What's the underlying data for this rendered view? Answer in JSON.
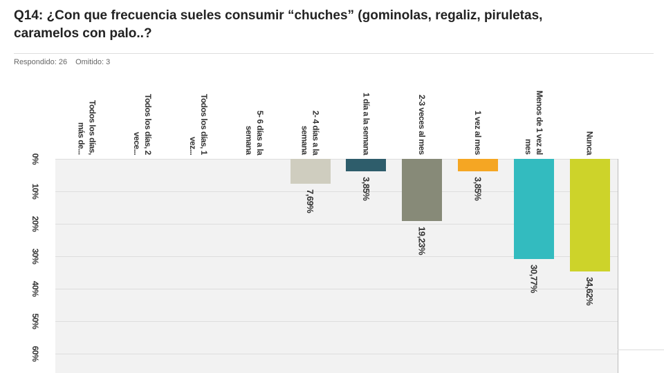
{
  "chart_data": {
    "type": "bar",
    "title": "Q14: ¿Con que frecuencia sueles consumir “chuches” (gominolas, regaliz, piruletas, caramelos con palo..?",
    "respondido": "Respondido: 26",
    "omitido": "Omitido: 3",
    "categories": [
      "Todos los días, más de...",
      "Todos los días, 2 vece...",
      "Todos los días, 1 vez...",
      "5- 6 días a la semana",
      "2- 4 días a la semana",
      "1 día a la semana",
      "2-3 veces al mes",
      "1 vez al mes",
      "Menos de 1 vez al mes",
      "Nunca"
    ],
    "values": [
      0,
      0,
      0,
      0,
      7.69,
      3.85,
      19.23,
      3.85,
      30.77,
      34.62
    ],
    "value_labels": [
      null,
      null,
      null,
      null,
      "7,69%",
      "3,85%",
      "19,23%",
      "3,85%",
      "30,77%",
      "34,62%"
    ],
    "colors": [
      "#cfcdbf",
      "#cfcdbf",
      "#cfcdbf",
      "#cfcdbf",
      "#cfcdbf",
      "#2e5d6b",
      "#878a78",
      "#f5a623",
      "#33bbbf",
      "#cdd32a"
    ],
    "ylim": [
      0,
      60
    ],
    "yticks": [
      {
        "value": 0,
        "label": "0%"
      },
      {
        "value": 10,
        "label": "10%"
      },
      {
        "value": 20,
        "label": "20%"
      },
      {
        "value": 30,
        "label": "30%"
      },
      {
        "value": 40,
        "label": "40%"
      },
      {
        "value": 50,
        "label": "50%"
      },
      {
        "value": 60,
        "label": "60%"
      }
    ],
    "grid": true
  }
}
